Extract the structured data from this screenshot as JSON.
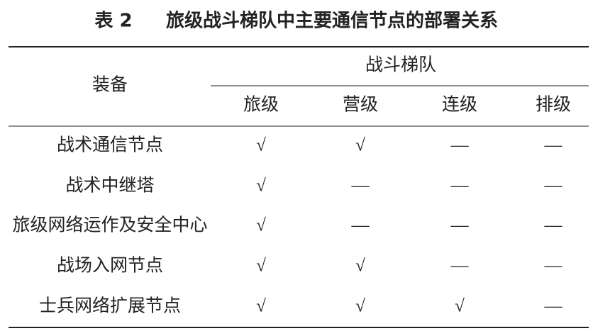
{
  "table": {
    "title": {
      "number": "表 2",
      "text": "旅级战斗梯队中主要通信节点的部署关系"
    },
    "header": {
      "equipment": "装备",
      "group": "战斗梯队",
      "levels": [
        "旅级",
        "营级",
        "连级",
        "排级"
      ]
    },
    "rows": [
      [
        "战术通信节点",
        "√",
        "√",
        "—",
        "—"
      ],
      [
        "战术中继塔",
        "√",
        "—",
        "—",
        "—"
      ],
      [
        "旅级网络运作及安全中心",
        "√",
        "—",
        "—",
        "—"
      ],
      [
        "战场入网节点",
        "√",
        "√",
        "—",
        "—"
      ],
      [
        "士兵网络扩展节点",
        "√",
        "√",
        "√",
        "—"
      ]
    ]
  }
}
